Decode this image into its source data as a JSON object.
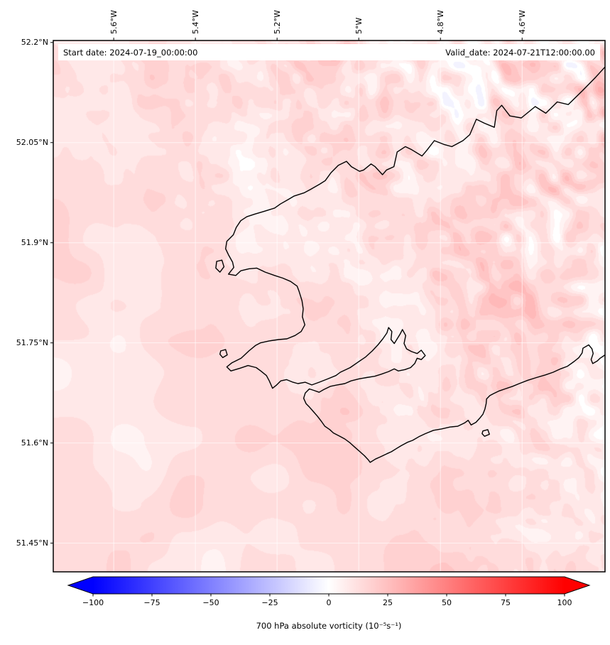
{
  "figure": {
    "background": "#ffffff"
  },
  "map": {
    "extent": {
      "lon_min": -5.748,
      "lon_max": -4.397,
      "lat_min": 51.407,
      "lat_max": 52.203
    },
    "annotations": {
      "start_date": "Start date: 2024-07-19_00:00:00",
      "valid_date": "Valid_date: 2024-07-21T12:00:00.00"
    },
    "border_color": "#000000",
    "gridline_color": "rgba(255,255,255,0.65)",
    "coastline_color": "#000000"
  },
  "axes": {
    "x_ticks": [
      {
        "lon": -5.6,
        "label": "5.6°W"
      },
      {
        "lon": -5.4,
        "label": "5.4°W"
      },
      {
        "lon": -5.2,
        "label": "5.2°W"
      },
      {
        "lon": -5.0,
        "label": "5°W"
      },
      {
        "lon": -4.8,
        "label": "4.8°W"
      },
      {
        "lon": -4.6,
        "label": "4.6°W"
      }
    ],
    "y_ticks": [
      {
        "lat": 52.2,
        "label": "52.2°N"
      },
      {
        "lat": 52.05,
        "label": "52.05°N"
      },
      {
        "lat": 51.9,
        "label": "51.9°N"
      },
      {
        "lat": 51.75,
        "label": "51.75°N"
      },
      {
        "lat": 51.6,
        "label": "51.6°N"
      },
      {
        "lat": 51.45,
        "label": "51.45°N"
      }
    ]
  },
  "colorbar": {
    "label": "700 hPa absolute vorticity (10⁻⁵s⁻¹)",
    "colormap": "bwr",
    "extend": "both",
    "ticks": [
      {
        "value": -100,
        "label": "−100"
      },
      {
        "value": -75,
        "label": "−75"
      },
      {
        "value": -50,
        "label": "−50"
      },
      {
        "value": -25,
        "label": "−25"
      },
      {
        "value": 0,
        "label": "0"
      },
      {
        "value": 25,
        "label": "25"
      },
      {
        "value": 50,
        "label": "50"
      },
      {
        "value": 75,
        "label": "75"
      },
      {
        "value": 100,
        "label": "100"
      }
    ]
  },
  "chart_data": {
    "type": "heatmap",
    "title": "",
    "variable": "700 hPa absolute vorticity",
    "units": "10⁻⁵ s⁻¹",
    "colormap": "bwr",
    "colorbar_range": [
      -100,
      100
    ],
    "colorbar_ticks": [
      -100,
      -75,
      -50,
      -25,
      0,
      25,
      50,
      75,
      100
    ],
    "colorbar_extend": "both",
    "contour_interval": 5,
    "lon_range": [
      -5.75,
      -4.4
    ],
    "lat_range": [
      51.41,
      52.2
    ],
    "x_tick_lons": [
      -5.6,
      -5.4,
      -5.2,
      -5.0,
      -4.8,
      -4.6
    ],
    "y_tick_lats": [
      52.2,
      52.05,
      51.9,
      51.75,
      51.6,
      51.45
    ],
    "start_date": "2024-07-19_00:00:00",
    "valid_date": "2024-07-21T12:00:00.00",
    "field_description": "Weak positive vorticity (about 5 to 30) over the whole domain shown as light pink filled contours; smoother broad maxima in the west and southwest; fine-scale SW-NE oriented streaks reaching about 40-50 over the northeast inland sector with a few small negative pockets (about -5 to -15, pale blue) near 51.85-52.0N, 4.6-4.9W."
  },
  "noise": {
    "seed": 11
  },
  "coastline": {
    "segments": [
      {
        "name": "mainland",
        "points": [
          [
            -4.39,
            52.168
          ],
          [
            -4.42,
            52.148
          ],
          [
            -4.452,
            52.128
          ],
          [
            -4.487,
            52.107
          ],
          [
            -4.514,
            52.111
          ],
          [
            -4.542,
            52.094
          ],
          [
            -4.568,
            52.104
          ],
          [
            -4.602,
            52.087
          ],
          [
            -4.63,
            52.09
          ],
          [
            -4.65,
            52.106
          ],
          [
            -4.662,
            52.098
          ],
          [
            -4.668,
            52.073
          ],
          [
            -4.692,
            52.079
          ],
          [
            -4.712,
            52.085
          ],
          [
            -4.728,
            52.062
          ],
          [
            -4.745,
            52.053
          ],
          [
            -4.772,
            52.044
          ],
          [
            -4.79,
            52.047
          ],
          [
            -4.815,
            52.053
          ],
          [
            -4.834,
            52.038
          ],
          [
            -4.845,
            52.03
          ],
          [
            -4.872,
            52.04
          ],
          [
            -4.886,
            52.044
          ],
          [
            -4.906,
            52.036
          ],
          [
            -4.914,
            52.014
          ],
          [
            -4.932,
            52.009
          ],
          [
            -4.942,
            52.002
          ],
          [
            -4.96,
            52.014
          ],
          [
            -4.97,
            52.018
          ],
          [
            -4.988,
            52.009
          ],
          [
            -4.998,
            52.007
          ],
          [
            -5.018,
            52.014
          ],
          [
            -5.03,
            52.022
          ],
          [
            -5.05,
            52.016
          ],
          [
            -5.068,
            52.005
          ],
          [
            -5.082,
            51.993
          ],
          [
            -5.095,
            51.988
          ],
          [
            -5.118,
            51.98
          ],
          [
            -5.133,
            51.975
          ],
          [
            -5.158,
            51.97
          ],
          [
            -5.172,
            51.965
          ],
          [
            -5.192,
            51.958
          ],
          [
            -5.206,
            51.952
          ],
          [
            -5.232,
            51.947
          ],
          [
            -5.254,
            51.943
          ],
          [
            -5.274,
            51.939
          ],
          [
            -5.289,
            51.933
          ],
          [
            -5.3,
            51.923
          ],
          [
            -5.307,
            51.912
          ],
          [
            -5.323,
            51.902
          ],
          [
            -5.326,
            51.891
          ],
          [
            -5.319,
            51.882
          ],
          [
            -5.309,
            51.871
          ],
          [
            -5.306,
            51.863
          ],
          [
            -5.319,
            51.853
          ],
          [
            -5.301,
            51.851
          ],
          [
            -5.289,
            51.858
          ],
          [
            -5.269,
            51.861
          ],
          [
            -5.25,
            51.862
          ],
          [
            -5.229,
            51.856
          ],
          [
            -5.206,
            51.851
          ],
          [
            -5.186,
            51.847
          ],
          [
            -5.167,
            51.842
          ],
          [
            -5.151,
            51.835
          ],
          [
            -5.146,
            51.827
          ],
          [
            -5.139,
            51.813
          ],
          [
            -5.136,
            51.801
          ],
          [
            -5.138,
            51.789
          ],
          [
            -5.132,
            51.777
          ],
          [
            -5.141,
            51.767
          ],
          [
            -5.156,
            51.761
          ],
          [
            -5.176,
            51.756
          ],
          [
            -5.196,
            51.755
          ],
          [
            -5.219,
            51.753
          ],
          [
            -5.241,
            51.75
          ],
          [
            -5.253,
            51.746
          ],
          [
            -5.269,
            51.738
          ],
          [
            -5.288,
            51.727
          ],
          [
            -5.311,
            51.72
          ],
          [
            -5.323,
            51.714
          ],
          [
            -5.313,
            51.708
          ],
          [
            -5.291,
            51.712
          ],
          [
            -5.271,
            51.716
          ],
          [
            -5.251,
            51.713
          ],
          [
            -5.24,
            51.708
          ],
          [
            -5.226,
            51.701
          ],
          [
            -5.219,
            51.693
          ],
          [
            -5.211,
            51.682
          ],
          [
            -5.201,
            51.687
          ],
          [
            -5.191,
            51.693
          ],
          [
            -5.177,
            51.695
          ],
          [
            -5.161,
            51.691
          ],
          [
            -5.149,
            51.689
          ],
          [
            -5.131,
            51.691
          ],
          [
            -5.115,
            51.687
          ],
          [
            -5.097,
            51.691
          ],
          [
            -5.076,
            51.696
          ],
          [
            -5.056,
            51.701
          ],
          [
            -5.045,
            51.706
          ],
          [
            -5.021,
            51.713
          ],
          [
            -5.002,
            51.721
          ],
          [
            -4.983,
            51.729
          ],
          [
            -4.967,
            51.738
          ],
          [
            -4.953,
            51.747
          ],
          [
            -4.941,
            51.756
          ],
          [
            -4.931,
            51.765
          ],
          [
            -4.927,
            51.773
          ],
          [
            -4.919,
            51.767
          ],
          [
            -4.921,
            51.755
          ],
          [
            -4.913,
            51.749
          ],
          [
            -4.906,
            51.756
          ],
          [
            -4.899,
            51.763
          ],
          [
            -4.893,
            51.77
          ],
          [
            -4.885,
            51.761
          ],
          [
            -4.889,
            51.749
          ],
          [
            -4.883,
            51.741
          ],
          [
            -4.871,
            51.737
          ],
          [
            -4.857,
            51.734
          ],
          [
            -4.847,
            51.739
          ],
          [
            -4.837,
            51.731
          ],
          [
            -4.847,
            51.725
          ],
          [
            -4.857,
            51.727
          ],
          [
            -4.863,
            51.719
          ],
          [
            -4.873,
            51.713
          ],
          [
            -4.887,
            51.71
          ],
          [
            -4.903,
            51.708
          ],
          [
            -4.913,
            51.711
          ],
          [
            -4.927,
            51.707
          ],
          [
            -4.945,
            51.703
          ],
          [
            -4.961,
            51.7
          ],
          [
            -4.981,
            51.698
          ],
          [
            -5.0,
            51.696
          ],
          [
            -5.019,
            51.693
          ],
          [
            -5.034,
            51.689
          ],
          [
            -5.053,
            51.687
          ],
          [
            -5.069,
            51.685
          ],
          [
            -5.086,
            51.68
          ],
          [
            -5.097,
            51.676
          ],
          [
            -5.111,
            51.679
          ],
          [
            -5.121,
            51.681
          ],
          [
            -5.131,
            51.675
          ],
          [
            -5.135,
            51.667
          ],
          [
            -5.129,
            51.659
          ],
          [
            -5.121,
            51.654
          ],
          [
            -5.111,
            51.647
          ],
          [
            -5.101,
            51.64
          ],
          [
            -5.091,
            51.632
          ],
          [
            -5.083,
            51.625
          ],
          [
            -5.071,
            51.62
          ],
          [
            -5.062,
            51.615
          ],
          [
            -5.046,
            51.61
          ],
          [
            -5.034,
            51.606
          ],
          [
            -5.021,
            51.6
          ],
          [
            -5.01,
            51.594
          ],
          [
            -4.997,
            51.587
          ],
          [
            -4.986,
            51.581
          ],
          [
            -4.977,
            51.575
          ],
          [
            -4.972,
            51.571
          ],
          [
            -4.959,
            51.576
          ],
          [
            -4.948,
            51.579
          ],
          [
            -4.931,
            51.584
          ],
          [
            -4.92,
            51.587
          ],
          [
            -4.907,
            51.592
          ],
          [
            -4.896,
            51.596
          ],
          [
            -4.881,
            51.601
          ],
          [
            -4.868,
            51.604
          ],
          [
            -4.851,
            51.61
          ],
          [
            -4.837,
            51.614
          ],
          [
            -4.817,
            51.619
          ],
          [
            -4.798,
            51.621
          ],
          [
            -4.776,
            51.624
          ],
          [
            -4.758,
            51.625
          ],
          [
            -4.741,
            51.63
          ],
          [
            -4.732,
            51.634
          ],
          [
            -4.725,
            51.627
          ],
          [
            -4.713,
            51.631
          ],
          [
            -4.704,
            51.637
          ],
          [
            -4.696,
            51.643
          ],
          [
            -4.691,
            51.651
          ],
          [
            -4.688,
            51.659
          ],
          [
            -4.687,
            51.666
          ],
          [
            -4.679,
            51.671
          ],
          [
            -4.67,
            51.674
          ],
          [
            -4.656,
            51.678
          ],
          [
            -4.642,
            51.681
          ],
          [
            -4.623,
            51.685
          ],
          [
            -4.607,
            51.689
          ],
          [
            -4.586,
            51.694
          ],
          [
            -4.565,
            51.698
          ],
          [
            -4.543,
            51.702
          ],
          [
            -4.524,
            51.706
          ],
          [
            -4.506,
            51.711
          ],
          [
            -4.489,
            51.715
          ],
          [
            -4.473,
            51.722
          ],
          [
            -4.461,
            51.728
          ],
          [
            -4.453,
            51.735
          ],
          [
            -4.451,
            51.742
          ],
          [
            -4.437,
            51.747
          ],
          [
            -4.429,
            51.741
          ],
          [
            -4.426,
            51.734
          ],
          [
            -4.431,
            51.725
          ],
          [
            -4.427,
            51.719
          ],
          [
            -4.416,
            51.723
          ],
          [
            -4.409,
            51.727
          ],
          [
            -4.399,
            51.731
          ],
          [
            -4.388,
            51.736
          ]
        ]
      },
      {
        "name": "ramsey-island",
        "points": [
          [
            -5.348,
            51.872
          ],
          [
            -5.335,
            51.874
          ],
          [
            -5.33,
            51.864
          ],
          [
            -5.34,
            51.856
          ],
          [
            -5.35,
            51.862
          ],
          [
            -5.348,
            51.872
          ]
        ]
      },
      {
        "name": "skomer-island",
        "points": [
          [
            -5.338,
            51.738
          ],
          [
            -5.326,
            51.74
          ],
          [
            -5.322,
            51.732
          ],
          [
            -5.333,
            51.728
          ],
          [
            -5.34,
            51.733
          ],
          [
            -5.338,
            51.738
          ]
        ]
      },
      {
        "name": "caldey-island",
        "points": [
          [
            -4.696,
            51.618
          ],
          [
            -4.684,
            51.62
          ],
          [
            -4.68,
            51.613
          ],
          [
            -4.692,
            51.61
          ],
          [
            -4.698,
            51.614
          ],
          [
            -4.696,
            51.618
          ]
        ]
      }
    ]
  }
}
